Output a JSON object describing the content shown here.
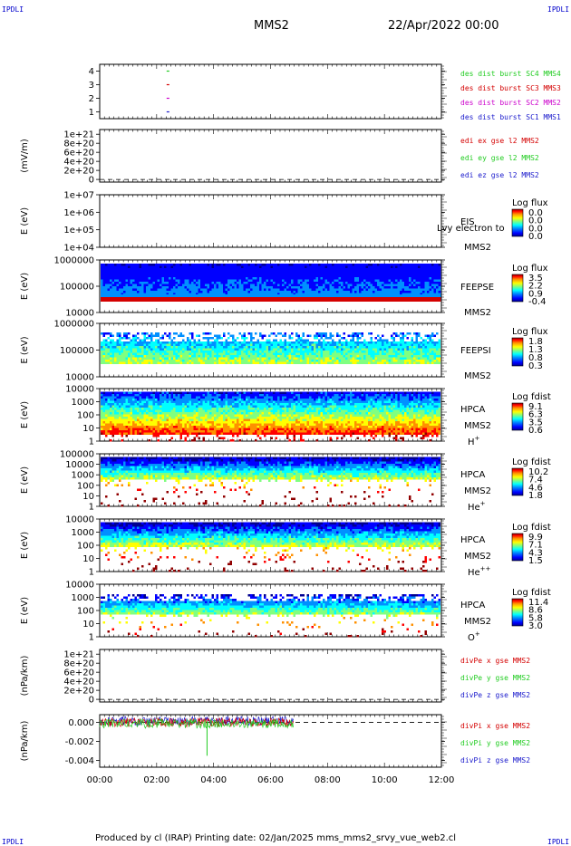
{
  "header": {
    "corner_tl": "IPDLI",
    "corner_tr": "IPDLI",
    "corner_bl": "IPDLI",
    "corner_br": "IPDLI",
    "spacecraft": "MMS2",
    "date": "22/Apr/2022 00:00"
  },
  "footer": {
    "text": "Produced by cl (IRAP)   Printing date: 02/Jan/2025   mms_mms2_srvy_vue_web2.cl"
  },
  "colors": {
    "blue": "#1a1acc",
    "red": "#d40000",
    "green": "#22cc22",
    "magenta": "#cc00cc",
    "colormap": [
      "#000090",
      "#0000ff",
      "#0090ff",
      "#00ffff",
      "#80ff80",
      "#ffff00",
      "#ff9000",
      "#ff0000",
      "#900000"
    ]
  },
  "x_axis": {
    "ticks": [
      "00:00",
      "02:00",
      "04:00",
      "06:00",
      "08:00",
      "10:00",
      "12:00"
    ],
    "range_hours": [
      0,
      12
    ]
  },
  "chart_data": [
    {
      "type": "scatter",
      "id": "des_burst",
      "ytick_labels": [
        "1",
        "2",
        "3",
        "4"
      ],
      "ylim": [
        0.5,
        4.5
      ],
      "series": [
        {
          "name": "des dist burst SC1 MMS1",
          "color": "#1a1acc",
          "x": [
            2.35
          ],
          "y": [
            1
          ]
        },
        {
          "name": "des dist burst SC2 MMS2",
          "color": "#cc00cc",
          "x": [
            2.35
          ],
          "y": [
            2
          ]
        },
        {
          "name": "des dist burst SC3 MMS3",
          "color": "#d40000",
          "x": [
            2.35
          ],
          "y": [
            3
          ]
        },
        {
          "name": "des dist burst SC4 MMS4",
          "color": "#22cc22",
          "x": [
            2.35
          ],
          "y": [
            4
          ]
        }
      ]
    },
    {
      "type": "line",
      "id": "edi",
      "ylabel": "(mV/m)",
      "ytick_labels": [
        "0",
        "2e+20",
        "4e+20",
        "6e+20",
        "8e+20",
        "1e+21"
      ],
      "ylim": [
        0,
        1e+21
      ],
      "zero_line": true,
      "series": [
        {
          "name": "edi ex gse l2 MMS2",
          "color": "#d40000"
        },
        {
          "name": "edi ey gse l2 MMS2",
          "color": "#22cc22"
        },
        {
          "name": "edi ez gse l2 MMS2",
          "color": "#1a1acc"
        }
      ]
    },
    {
      "type": "heatmap",
      "id": "eis",
      "ylabel": "E (eV)",
      "ytick_labels": [
        "1e+04",
        "1e+05",
        "1e+06",
        "1e+07"
      ],
      "instrument": [
        "EIS",
        "MMS2"
      ],
      "overlay_text": "Lvy electron to",
      "colorbar_title": "Log flux",
      "colorbar_ticks": [
        "0.0",
        "0.0",
        "0.0",
        "0.0"
      ],
      "has_data": false
    },
    {
      "type": "heatmap",
      "id": "feepse",
      "ylabel": "E (eV)",
      "ytick_labels": [
        "10000",
        "100000",
        "1000000"
      ],
      "instrument": [
        "FEEPSE",
        "MMS2"
      ],
      "colorbar_title": "Log flux",
      "colorbar_ticks": [
        "3.5",
        "2.2",
        "0.9",
        "-0.4"
      ],
      "data_end_hour": 12,
      "has_data": true
    },
    {
      "type": "heatmap",
      "id": "feepsi",
      "ylabel": "E (eV)",
      "ytick_labels": [
        "10000",
        "100000",
        "1000000"
      ],
      "instrument": [
        "FEEPSI",
        "MMS2"
      ],
      "colorbar_title": "Log flux",
      "colorbar_ticks": [
        "1.8",
        "1.3",
        "0.8",
        "0.3"
      ],
      "data_end_hour": 12,
      "has_data": true
    },
    {
      "type": "heatmap",
      "id": "hpca_h",
      "ylabel": "E (eV)",
      "ytick_labels": [
        "1",
        "10",
        "100",
        "1000",
        "10000"
      ],
      "instrument": [
        "HPCA",
        "MMS2"
      ],
      "species": "H",
      "species_charge": "+",
      "colorbar_title": "Log fdist",
      "colorbar_ticks": [
        "9.1",
        "6.3",
        "3.5",
        "0.6"
      ],
      "data_end_hour": 12,
      "has_data": true
    },
    {
      "type": "heatmap",
      "id": "hpca_he",
      "ylabel": "E (eV)",
      "ytick_labels": [
        "1",
        "10",
        "100",
        "1000",
        "10000",
        "100000"
      ],
      "instrument": [
        "HPCA",
        "MMS2"
      ],
      "species": "He",
      "species_charge": "+",
      "colorbar_title": "Log fdist",
      "colorbar_ticks": [
        "10.2",
        "7.4",
        "4.6",
        "1.8"
      ],
      "data_end_hour": 12,
      "has_data": true
    },
    {
      "type": "heatmap",
      "id": "hpca_hepp",
      "ylabel": "E (eV)",
      "ytick_labels": [
        "1",
        "10",
        "100",
        "1000",
        "10000"
      ],
      "instrument": [
        "HPCA",
        "MMS2"
      ],
      "species": "He",
      "species_charge": "++",
      "colorbar_title": "Log fdist",
      "colorbar_ticks": [
        "9.9",
        "7.1",
        "4.3",
        "1.5"
      ],
      "data_end_hour": 12,
      "has_data": true
    },
    {
      "type": "heatmap",
      "id": "hpca_o",
      "ylabel": "E (eV)",
      "ytick_labels": [
        "1",
        "10",
        "100",
        "1000",
        "10000"
      ],
      "instrument": [
        "HPCA",
        "MMS2"
      ],
      "species": "O",
      "species_charge": "+",
      "colorbar_title": "Log fdist",
      "colorbar_ticks": [
        "11.4",
        "8.6",
        "5.8",
        "3.0"
      ],
      "data_end_hour": 12,
      "has_data": true
    },
    {
      "type": "line",
      "id": "divpe",
      "ylabel": "(nPa/km)",
      "ytick_labels": [
        "0",
        "2e+20",
        "4e+20",
        "6e+20",
        "8e+20",
        "1e+21"
      ],
      "ylim": [
        0,
        1e+21
      ],
      "zero_line": true,
      "series": [
        {
          "name": "divPe x gse MMS2",
          "color": "#d40000"
        },
        {
          "name": "divPe y gse MMS2",
          "color": "#22cc22"
        },
        {
          "name": "divPe z gse MMS2",
          "color": "#1a1acc"
        }
      ]
    },
    {
      "type": "line",
      "id": "divpi",
      "ylabel": "(nPa/km)",
      "ytick_labels": [
        "-0.004",
        "-0.002",
        "0.000"
      ],
      "ytick_values": [
        -0.004,
        -0.002,
        0.0
      ],
      "ylim": [
        -0.0047,
        0.0008
      ],
      "zero_line": true,
      "data_end_hour": 6.8,
      "spike": {
        "x": 3.77,
        "y": -0.0035,
        "series": "divPi y gse MMS2"
      },
      "series": [
        {
          "name": "divPi x gse MMS2",
          "color": "#d40000"
        },
        {
          "name": "divPi y gse MMS2",
          "color": "#22cc22"
        },
        {
          "name": "divPi z gse MMS2",
          "color": "#1a1acc"
        }
      ]
    }
  ]
}
